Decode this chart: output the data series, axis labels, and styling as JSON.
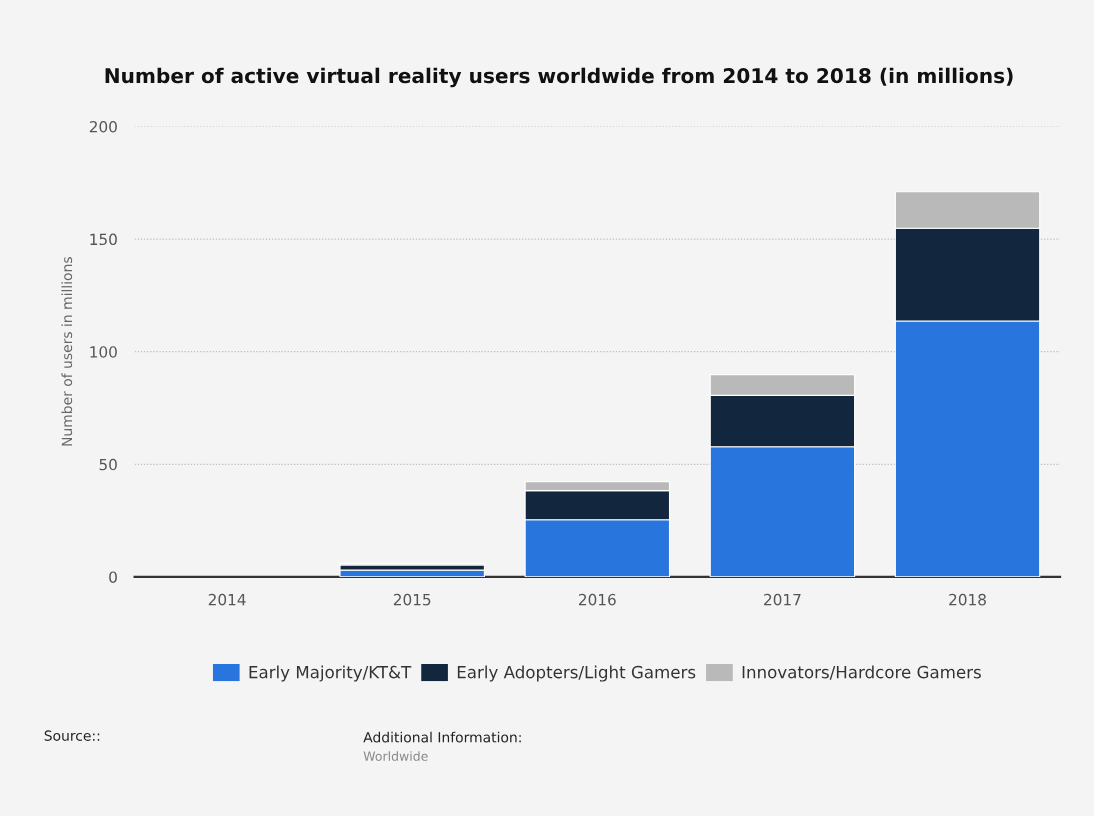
{
  "chart_data": {
    "type": "bar",
    "title": "Number of active virtual reality users worldwide from 2014 to 2018 (in millions)",
    "ylabel": "Number of users in millions",
    "categories": [
      "2014",
      "2015",
      "2016",
      "2017",
      "2018"
    ],
    "stacked": true,
    "series": [
      {
        "name": "Early Majority/KT&T",
        "color": "#2876dd",
        "values": [
          null,
          3.0,
          25.4,
          57.8,
          113.6
        ]
      },
      {
        "name": "Early Adopters/Light Gamers",
        "color": "#12263d",
        "values": [
          null,
          2.3,
          12.9,
          22.8,
          41.2
        ]
      },
      {
        "name": "Innovators/Hardcore Gamers",
        "color": "#b9b9b9",
        "values": [
          null,
          0.6,
          4.0,
          9.2,
          16.2
        ]
      }
    ],
    "ylim": [
      0,
      200
    ],
    "yticks": [
      0,
      50,
      100,
      150,
      200
    ],
    "grid": "y",
    "legend": "bottom",
    "annotations": [
      "Source::",
      "Additional Information:",
      "Worldwide"
    ]
  }
}
